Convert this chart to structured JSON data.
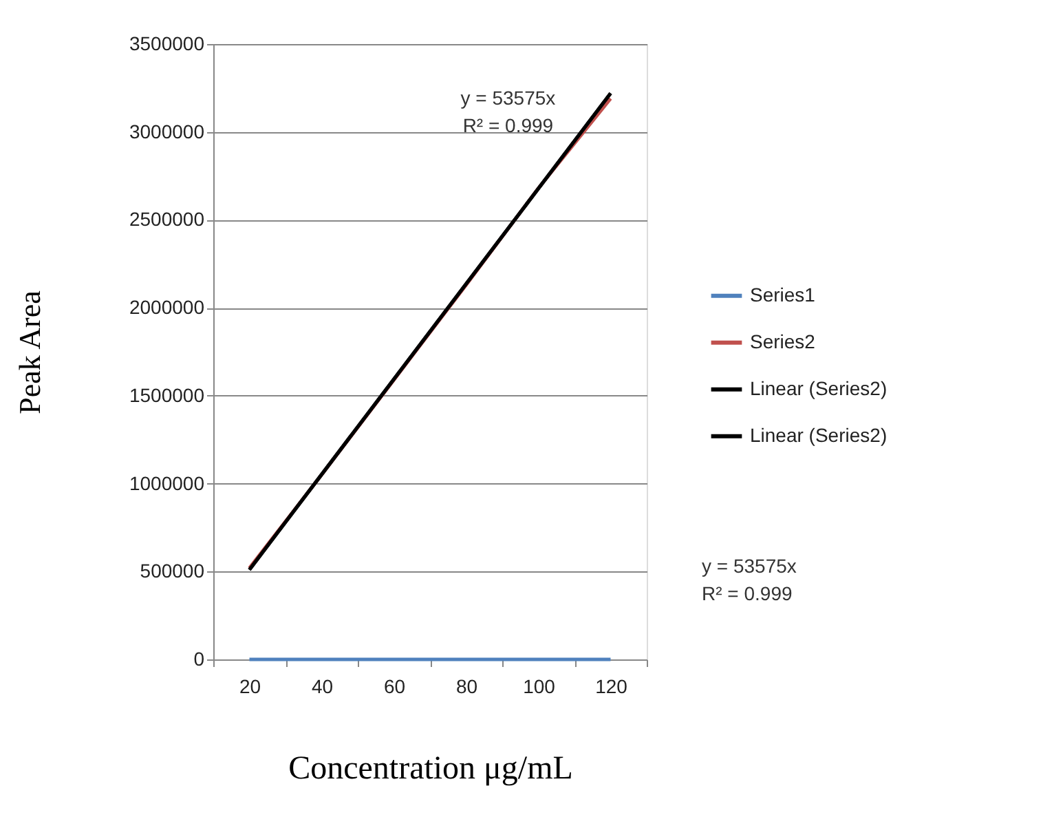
{
  "chart_data": {
    "type": "line",
    "xlabel": "Concentration μg/mL",
    "ylabel": "Peak Area",
    "categories": [
      "20",
      "40",
      "60",
      "80",
      "100",
      "120"
    ],
    "series": [
      {
        "name": "Series1",
        "color": "#4f81bd",
        "values": [
          0,
          0,
          0,
          0,
          0,
          0
        ]
      },
      {
        "name": "Series2",
        "color": "#c0504d",
        "values": [
          520000,
          1050000,
          1590000,
          2130000,
          2680000,
          3190000
        ]
      },
      {
        "name": "Linear (Series2)",
        "color": "#000000",
        "x": [
          "20",
          "120"
        ],
        "values": [
          510000,
          3220000
        ]
      },
      {
        "name": "Linear (Series2)",
        "color": "#000000",
        "x": [
          "20",
          "120"
        ],
        "values": [
          510000,
          3220000
        ]
      }
    ],
    "ylim": [
      0,
      3500000
    ],
    "yticks": [
      0,
      500000,
      1000000,
      1500000,
      2000000,
      2500000,
      3000000,
      3500000
    ],
    "grid": "y",
    "legend": "right",
    "marker": "none",
    "line_style": "solid",
    "annotations": [
      "y = 53575x",
      "R² = 0.999",
      "y = 53575x",
      "R² = 0.999"
    ]
  }
}
